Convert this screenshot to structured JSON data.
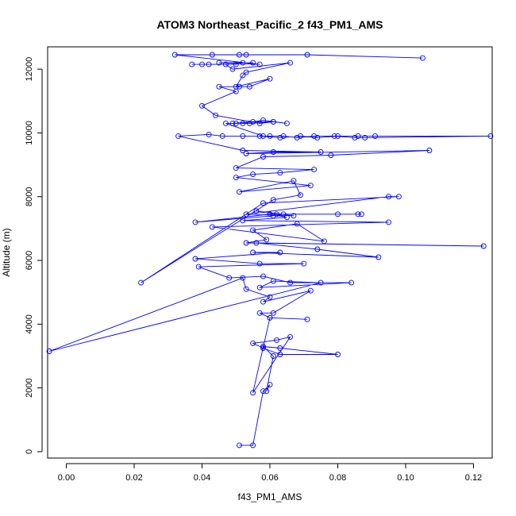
{
  "chart_data": {
    "type": "line",
    "title": "ATOM3 Northeast_Pacific_2 f43_PM1_AMS",
    "xlabel": "f43_PM1_AMS",
    "ylabel": "Altitude (m)",
    "xlim": [
      -0.0055,
      0.1255
    ],
    "ylim": [
      -200,
      12700
    ],
    "xticks": [
      0.0,
      0.02,
      0.04,
      0.06,
      0.08,
      0.1,
      0.12
    ],
    "xtick_labels": [
      "0.00",
      "0.02",
      "0.04",
      "0.06",
      "0.08",
      "0.10",
      "0.12"
    ],
    "yticks": [
      0,
      2000,
      4000,
      6000,
      8000,
      10000,
      12000
    ],
    "ytick_labels": [
      "0",
      "2000",
      "4000",
      "6000",
      "8000",
      "10000",
      "12000"
    ],
    "grid": false,
    "legend": "none",
    "colors": {
      "series": "#0000ff",
      "text": "#000000",
      "frame": "#000000"
    },
    "series": [
      {
        "marker": "open-circle",
        "x": [
          0.051,
          0.055,
          0.058,
          0.06,
          0.059,
          0.061,
          0.058,
          0.063,
          0.08,
          0.063,
          0.058,
          0.055,
          0.062,
          0.066,
          0.055,
          0.06,
          0.071,
          0.06,
          0.057,
          0.061,
          0.072,
          0.058,
          0.06,
          0.053,
          0.052,
          -0.005,
          0.075,
          0.061,
          0.057,
          0.084,
          0.066,
          0.058,
          0.048,
          0.039,
          0.07,
          0.057,
          0.038,
          0.063,
          0.055,
          0.092,
          0.074,
          0.056,
          0.123,
          0.053,
          0.059,
          0.055,
          0.068,
          0.076,
          0.043,
          0.095,
          0.052,
          0.065,
          0.06,
          0.038,
          0.061,
          0.064,
          0.086,
          0.087,
          0.08,
          0.062,
          0.056,
          0.067,
          0.053,
          0.095,
          0.098,
          0.058,
          0.022,
          0.061,
          0.069,
          0.067,
          0.051,
          0.072,
          0.05,
          0.055,
          0.063,
          0.073,
          0.05,
          0.058,
          0.078,
          0.107,
          0.053,
          0.061,
          0.075,
          0.052,
          0.033,
          0.042,
          0.046,
          0.052,
          0.057,
          0.063,
          0.069,
          0.074,
          0.08,
          0.086,
          0.091,
          0.125,
          0.088,
          0.085,
          0.079,
          0.073,
          0.068,
          0.064,
          0.06,
          0.058,
          0.047,
          0.054,
          0.061,
          0.065,
          0.058,
          0.052,
          0.05,
          0.049,
          0.055,
          0.061,
          0.057,
          0.044,
          0.04,
          0.05,
          0.045,
          0.051,
          0.054,
          0.06,
          0.05,
          0.052,
          0.053,
          0.066,
          0.049,
          0.047,
          0.04,
          0.037,
          0.042,
          0.05,
          0.052,
          0.055,
          0.045,
          0.057,
          0.032,
          0.043,
          0.051,
          0.053,
          0.071,
          0.105
        ]
      }
    ],
    "y": [
      200,
      200,
      1900,
      2100,
      1900,
      3000,
      3300,
      3250,
      3050,
      3050,
      3250,
      3400,
      3500,
      3600,
      1850,
      4200,
      4150,
      4200,
      4350,
      4350,
      5050,
      4700,
      4850,
      5100,
      5450,
      3150,
      5300,
      5350,
      5150,
      5300,
      5300,
      5500,
      5450,
      5800,
      5900,
      5900,
      6050,
      6250,
      6250,
      6100,
      6350,
      6550,
      6450,
      6550,
      6650,
      6950,
      7150,
      6600,
      7050,
      7200,
      7250,
      7350,
      7450,
      7200,
      7400,
      7450,
      7450,
      7450,
      7450,
      7450,
      7550,
      7400,
      7450,
      8000,
      8000,
      7800,
      5300,
      7900,
      8050,
      8500,
      8150,
      8350,
      8600,
      8700,
      8750,
      8850,
      8900,
      9250,
      9300,
      9450,
      9350,
      9400,
      9400,
      9450,
      9900,
      9950,
      9900,
      9900,
      9900,
      9850,
      9900,
      9850,
      9900,
      9900,
      9900,
      9900,
      9850,
      9850,
      9900,
      9900,
      9850,
      9900,
      9900,
      9900,
      10300,
      10300,
      10350,
      10300,
      10400,
      10300,
      10300,
      10300,
      10350,
      10350,
      10300,
      10550,
      10850,
      11300,
      11450,
      11450,
      11450,
      11700,
      11450,
      11800,
      11900,
      12200,
      12000,
      12150,
      12150,
      12150,
      12150,
      12150,
      12200,
      12200,
      12200,
      12150,
      12450,
      12450,
      12450,
      12450,
      12450,
      12350
    ]
  }
}
